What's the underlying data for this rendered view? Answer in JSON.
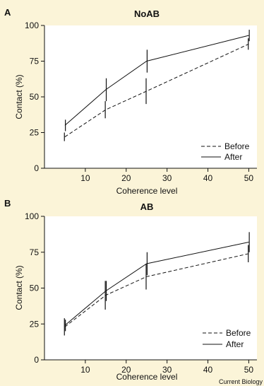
{
  "credit": "Current Biology",
  "colors": {
    "background": "#fbf4d8",
    "plot_area": "#ffffff",
    "line": "#111111"
  },
  "chart_data": [
    {
      "type": "line",
      "panel": "A",
      "title": "NoAB",
      "xlabel": "Coherence level",
      "ylabel": "Contact (%)",
      "xlim": [
        0,
        52
      ],
      "ylim": [
        0,
        100
      ],
      "xticks": [
        10,
        20,
        30,
        40,
        50
      ],
      "yticks": [
        0,
        25,
        50,
        75,
        100
      ],
      "grid": false,
      "legend_position": "bottom-right",
      "x": [
        5,
        15,
        25,
        50
      ],
      "series": [
        {
          "name": "Before",
          "style": "dashed",
          "values": [
            22,
            41,
            54,
            87
          ],
          "error": [
            3,
            6,
            9,
            4
          ]
        },
        {
          "name": "After",
          "style": "solid",
          "values": [
            30,
            55,
            75,
            93
          ],
          "error": [
            4,
            8,
            8,
            4
          ]
        }
      ]
    },
    {
      "type": "line",
      "panel": "B",
      "title": "AB",
      "xlabel": "Coherence level",
      "ylabel": "Contact (%)",
      "xlim": [
        0,
        52
      ],
      "ylim": [
        0,
        100
      ],
      "xticks": [
        10,
        20,
        30,
        40,
        50
      ],
      "yticks": [
        0,
        25,
        50,
        75,
        100
      ],
      "grid": false,
      "legend_position": "bottom-right",
      "x": [
        5,
        15,
        25,
        50
      ],
      "series": [
        {
          "name": "Before",
          "style": "dashed",
          "values": [
            23,
            45,
            58,
            74
          ],
          "error": [
            6,
            10,
            9,
            6
          ]
        },
        {
          "name": "After",
          "style": "solid",
          "values": [
            24,
            48,
            67,
            82
          ],
          "error": [
            4,
            7,
            8,
            7
          ]
        }
      ]
    }
  ]
}
